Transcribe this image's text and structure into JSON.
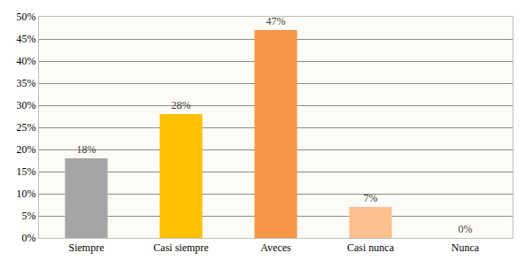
{
  "chart_data": {
    "type": "bar",
    "categories": [
      "Siempre",
      "Casi siempre",
      "Aveces",
      "Casi nunca",
      "Nunca"
    ],
    "values": [
      18,
      28,
      47,
      7,
      0
    ],
    "value_labels": [
      "18%",
      "28%",
      "47%",
      "7%",
      "0%"
    ],
    "colors": [
      "#a5a5a5",
      "#ffc000",
      "#f79646",
      "#fac090",
      "#d9d9d9"
    ],
    "ylim": [
      0,
      50
    ],
    "yticks": [
      {
        "value": 0,
        "label": "0%"
      },
      {
        "value": 5,
        "label": "5%"
      },
      {
        "value": 10,
        "label": "10%"
      },
      {
        "value": 15,
        "label": "15%"
      },
      {
        "value": 20,
        "label": "20%"
      },
      {
        "value": 25,
        "label": "25%"
      },
      {
        "value": 30,
        "label": "30%"
      },
      {
        "value": 35,
        "label": "35%"
      },
      {
        "value": 40,
        "label": "40%"
      },
      {
        "value": 45,
        "label": "45%"
      },
      {
        "value": 50,
        "label": "50%"
      }
    ],
    "grid": true,
    "data_labels": true
  }
}
